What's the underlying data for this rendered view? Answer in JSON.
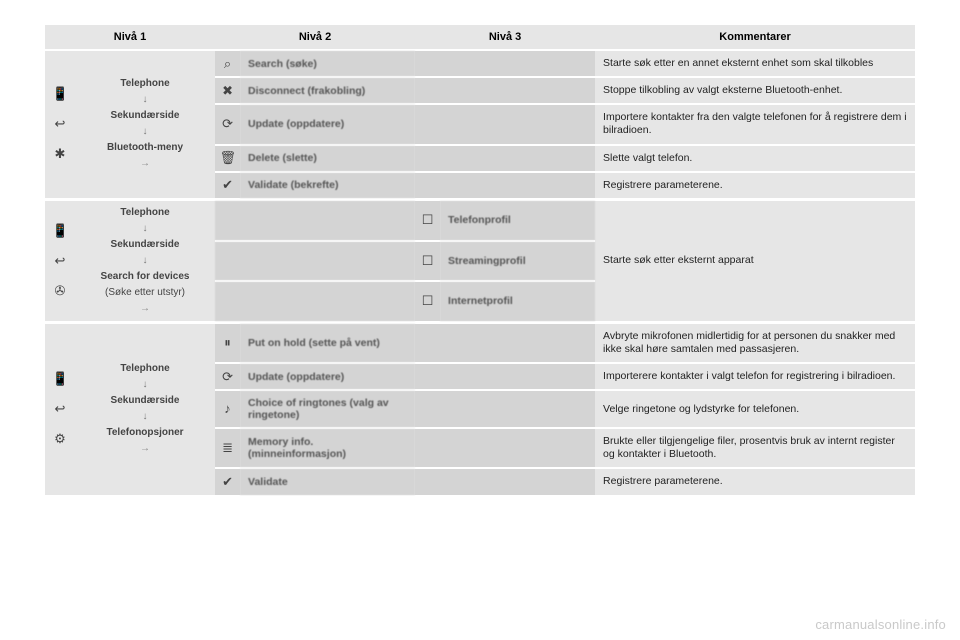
{
  "headers": {
    "n1": "Nivå 1",
    "n2": "Nivå 2",
    "n3": "Nivå 3",
    "n4": "Kommentarer"
  },
  "watermark": "carmanualsonline.info",
  "section1": {
    "path": {
      "a": "Telephone",
      "b": "Sekundærside",
      "c": "Bluetooth-meny"
    },
    "rows": [
      {
        "icon": "⌕",
        "label": "Search (søke)",
        "comment": "Starte søk etter en annet eksternt enhet som skal tilkobles"
      },
      {
        "icon": "✖",
        "label": "Disconnect (frakobling)",
        "comment": "Stoppe tilkobling av valgt eksterne Bluetooth-enhet."
      },
      {
        "icon": "⟳",
        "label": "Update (oppdatere)",
        "comment": "Importere kontakter fra den valgte telefonen for å registrere dem i bilradioen."
      },
      {
        "icon": "🗑",
        "label": "Delete (slette)",
        "comment": "Slette valgt telefon."
      },
      {
        "icon": "✔",
        "label": "Validate (bekrefte)",
        "comment": "Registrere parameterene."
      }
    ]
  },
  "section2": {
    "path": {
      "a": "Telephone",
      "b": "Sekundærside",
      "c": "Search for devices",
      "c2": "(Søke etter utstyr)"
    },
    "sharedComment": "Starte søk etter eksternt apparat",
    "rows": [
      {
        "box": "☐",
        "label": "Telefonprofil"
      },
      {
        "box": "☐",
        "label": "Streamingprofil"
      },
      {
        "box": "☐",
        "label": "Internetprofil"
      }
    ]
  },
  "section3": {
    "path": {
      "a": "Telephone",
      "b": "Sekundærside",
      "c": "Telefonopsjoner"
    },
    "rows": [
      {
        "icon": "⏸",
        "label": "Put on hold (sette på vent)",
        "comment": "Avbryte mikrofonen midlertidig for at personen du snakker med ikke skal høre samtalen med passasjeren."
      },
      {
        "icon": "⟳",
        "label": "Update (oppdatere)",
        "comment": "Importerere kontakter i valgt telefon for registrering i bilradioen."
      },
      {
        "icon": "♪",
        "label": "Choice of ringtones (valg av ringetone)",
        "comment": "Velge ringetone og lydstyrke for telefonen."
      },
      {
        "icon": "≣",
        "label": "Memory info. (minneinformasjon)",
        "comment": "Brukte eller tilgjengelige filer, prosentvis bruk av internt register og kontakter i Bluetooth."
      },
      {
        "icon": "✔",
        "label": "Validate",
        "comment": "Registrere parameterene."
      }
    ]
  },
  "sideIcons": {
    "s1": [
      "📱",
      "↩",
      "✱"
    ],
    "s2": [
      "📱",
      "↩",
      "✇"
    ],
    "s3": [
      "📱",
      "↩",
      "⚙"
    ]
  }
}
